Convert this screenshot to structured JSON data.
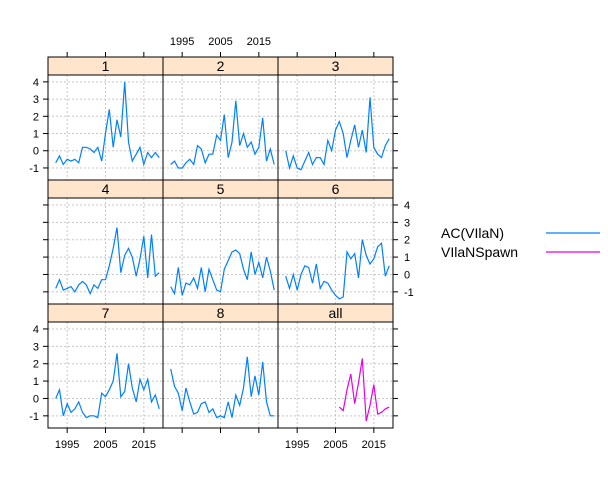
{
  "chart_data": {
    "type": "line",
    "layout": "lattice 3x3 trellis",
    "grid": true,
    "legend_position": "right",
    "strip_color": "#ffe5cc",
    "x_ticks": [
      1995,
      2005,
      2015
    ],
    "y_ticks": [
      -1,
      0,
      1,
      2,
      3,
      4
    ],
    "xlim": [
      1990,
      2020
    ],
    "ylim": [
      -1.7,
      4.4
    ],
    "legend": [
      {
        "label": "AC(VIlaN)",
        "color": "#0080ff"
      },
      {
        "label": "VIlaNSpawn",
        "color": "#e600e6"
      }
    ],
    "panels": [
      {
        "label": "1",
        "series": [
          {
            "name": "AC(VIlaN)",
            "x": [
              1992,
              1993,
              1994,
              1995,
              1996,
              1997,
              1998,
              1999,
              2000,
              2001,
              2002,
              2003,
              2004,
              2005,
              2006,
              2007,
              2008,
              2009,
              2010,
              2011,
              2012,
              2013,
              2014,
              2015,
              2016,
              2017,
              2018,
              2019
            ],
            "y": [
              -0.7,
              -0.3,
              -0.8,
              -0.5,
              -0.6,
              -0.5,
              -0.7,
              0.2,
              0.2,
              0.1,
              -0.1,
              0.2,
              -0.6,
              1.0,
              2.4,
              0.2,
              1.8,
              0.8,
              4.0,
              0.5,
              -0.6,
              -0.2,
              0.2,
              -0.8,
              -0.1,
              -0.4,
              -0.1,
              -0.4
            ]
          }
        ]
      },
      {
        "label": "2",
        "series": [
          {
            "name": "AC(VIlaN)",
            "x": [
              1992,
              1993,
              1994,
              1995,
              1996,
              1997,
              1998,
              1999,
              2000,
              2001,
              2002,
              2003,
              2004,
              2005,
              2006,
              2007,
              2008,
              2009,
              2010,
              2011,
              2012,
              2013,
              2014,
              2015,
              2016,
              2017,
              2018,
              2019
            ],
            "y": [
              -0.8,
              -0.6,
              -1.0,
              -1.0,
              -0.7,
              -0.5,
              -0.8,
              0.3,
              0.1,
              -0.7,
              -0.2,
              -0.2,
              0.9,
              0.6,
              2.1,
              -0.4,
              0.5,
              2.9,
              0.3,
              1.0,
              0.2,
              0.5,
              -0.2,
              0.2,
              1.9,
              -0.6,
              0.1,
              -0.8
            ]
          }
        ]
      },
      {
        "label": "3",
        "series": [
          {
            "name": "AC(VIlaN)",
            "x": [
              1992,
              1993,
              1994,
              1995,
              1996,
              1997,
              1998,
              1999,
              2000,
              2001,
              2002,
              2003,
              2004,
              2005,
              2006,
              2007,
              2008,
              2009,
              2010,
              2011,
              2012,
              2013,
              2014,
              2015,
              2016,
              2017,
              2018,
              2019
            ],
            "y": [
              0.0,
              -1.0,
              -0.3,
              -1.0,
              -1.1,
              -0.6,
              -0.1,
              -0.8,
              -0.4,
              -0.4,
              -0.8,
              0.6,
              0.0,
              1.2,
              1.7,
              1.0,
              -0.4,
              0.6,
              1.5,
              0.2,
              1.2,
              -0.1,
              3.1,
              0.2,
              -0.2,
              -0.4,
              0.3,
              0.7
            ]
          }
        ]
      },
      {
        "label": "4",
        "series": [
          {
            "name": "AC(VIlaN)",
            "x": [
              1992,
              1993,
              1994,
              1995,
              1996,
              1997,
              1998,
              1999,
              2000,
              2001,
              2002,
              2003,
              2004,
              2005,
              2006,
              2007,
              2008,
              2009,
              2010,
              2011,
              2012,
              2013,
              2014,
              2015,
              2016,
              2017,
              2018,
              2019
            ],
            "y": [
              -0.8,
              -0.3,
              -0.9,
              -0.8,
              -0.7,
              -1.0,
              -0.6,
              -0.4,
              -0.6,
              -1.1,
              -0.6,
              -0.8,
              -0.3,
              -0.3,
              0.5,
              1.5,
              2.7,
              0.1,
              1.1,
              1.5,
              1.0,
              -0.1,
              0.9,
              2.2,
              -0.2,
              2.3,
              -0.1,
              0.1
            ]
          }
        ]
      },
      {
        "label": "5",
        "series": [
          {
            "name": "AC(VIlaN)",
            "x": [
              1992,
              1993,
              1994,
              1995,
              1996,
              1997,
              1998,
              1999,
              2000,
              2001,
              2002,
              2003,
              2004,
              2005,
              2006,
              2007,
              2008,
              2009,
              2010,
              2011,
              2012,
              2013,
              2014,
              2015,
              2016,
              2017,
              2018,
              2019
            ],
            "y": [
              -0.7,
              -1.1,
              0.4,
              -1.2,
              -0.5,
              -0.6,
              -0.2,
              -0.8,
              0.4,
              -1.0,
              0.3,
              -0.3,
              -0.9,
              -1.0,
              0.3,
              0.8,
              1.3,
              1.4,
              1.2,
              0.3,
              -0.3,
              1.3,
              0.0,
              0.7,
              -0.2,
              1.0,
              0.2,
              -0.9
            ]
          }
        ]
      },
      {
        "label": "6",
        "series": [
          {
            "name": "AC(VIlaN)",
            "x": [
              1992,
              1993,
              1994,
              1995,
              1996,
              1997,
              1998,
              1999,
              2000,
              2001,
              2002,
              2003,
              2004,
              2005,
              2006,
              2007,
              2008,
              2009,
              2010,
              2011,
              2012,
              2013,
              2014,
              2015,
              2016,
              2017,
              2018,
              2019
            ],
            "y": [
              -0.1,
              -0.8,
              0.0,
              -0.9,
              0.0,
              0.5,
              0.4,
              -0.5,
              0.6,
              -0.8,
              -0.4,
              -0.5,
              -0.9,
              -1.2,
              -1.4,
              -1.3,
              1.3,
              0.9,
              1.2,
              -0.2,
              2.0,
              1.1,
              0.6,
              0.9,
              1.6,
              1.8,
              -0.1,
              0.5
            ]
          }
        ]
      },
      {
        "label": "7",
        "series": [
          {
            "name": "AC(VIlaN)",
            "x": [
              1992,
              1993,
              1994,
              1995,
              1996,
              1997,
              1998,
              1999,
              2000,
              2001,
              2002,
              2003,
              2004,
              2005,
              2006,
              2007,
              2008,
              2009,
              2010,
              2011,
              2012,
              2013,
              2014,
              2015,
              2016,
              2017,
              2018,
              2019
            ],
            "y": [
              0.0,
              0.5,
              -1.0,
              -0.3,
              -0.8,
              -0.6,
              -0.2,
              -0.8,
              -1.1,
              -1.0,
              -1.0,
              -1.1,
              0.3,
              0.1,
              0.5,
              1.0,
              2.6,
              0.1,
              0.4,
              2.0,
              0.6,
              -0.2,
              1.1,
              0.5,
              1.1,
              -0.2,
              0.2,
              -0.6
            ]
          }
        ]
      },
      {
        "label": "8",
        "series": [
          {
            "name": "AC(VIlaN)",
            "x": [
              1992,
              1993,
              1994,
              1995,
              1996,
              1997,
              1998,
              1999,
              2000,
              2001,
              2002,
              2003,
              2004,
              2005,
              2006,
              2007,
              2008,
              2009,
              2010,
              2011,
              2012,
              2013,
              2014,
              2015,
              2016,
              2017,
              2018,
              2019
            ],
            "y": [
              1.7,
              0.7,
              0.3,
              -0.7,
              0.6,
              -0.2,
              -0.9,
              -0.8,
              -0.3,
              -0.2,
              -0.8,
              -0.6,
              -1.1,
              -1.0,
              -1.1,
              -0.2,
              -1.1,
              0.2,
              -0.4,
              0.6,
              2.4,
              0.1,
              1.3,
              0.2,
              2.1,
              -0.2,
              -1.0,
              -1.0
            ]
          }
        ]
      },
      {
        "label": "all",
        "series": [
          {
            "name": "VIlaNSpawn",
            "x": [
              2006,
              2007,
              2008,
              2009,
              2010,
              2011,
              2012,
              2013,
              2014,
              2015,
              2016,
              2017,
              2018,
              2019
            ],
            "y": [
              -0.5,
              -0.7,
              0.5,
              1.4,
              -0.3,
              0.9,
              2.3,
              -1.3,
              -0.4,
              0.8,
              -0.9,
              -0.8,
              -0.6,
              -0.5
            ]
          }
        ]
      }
    ]
  }
}
